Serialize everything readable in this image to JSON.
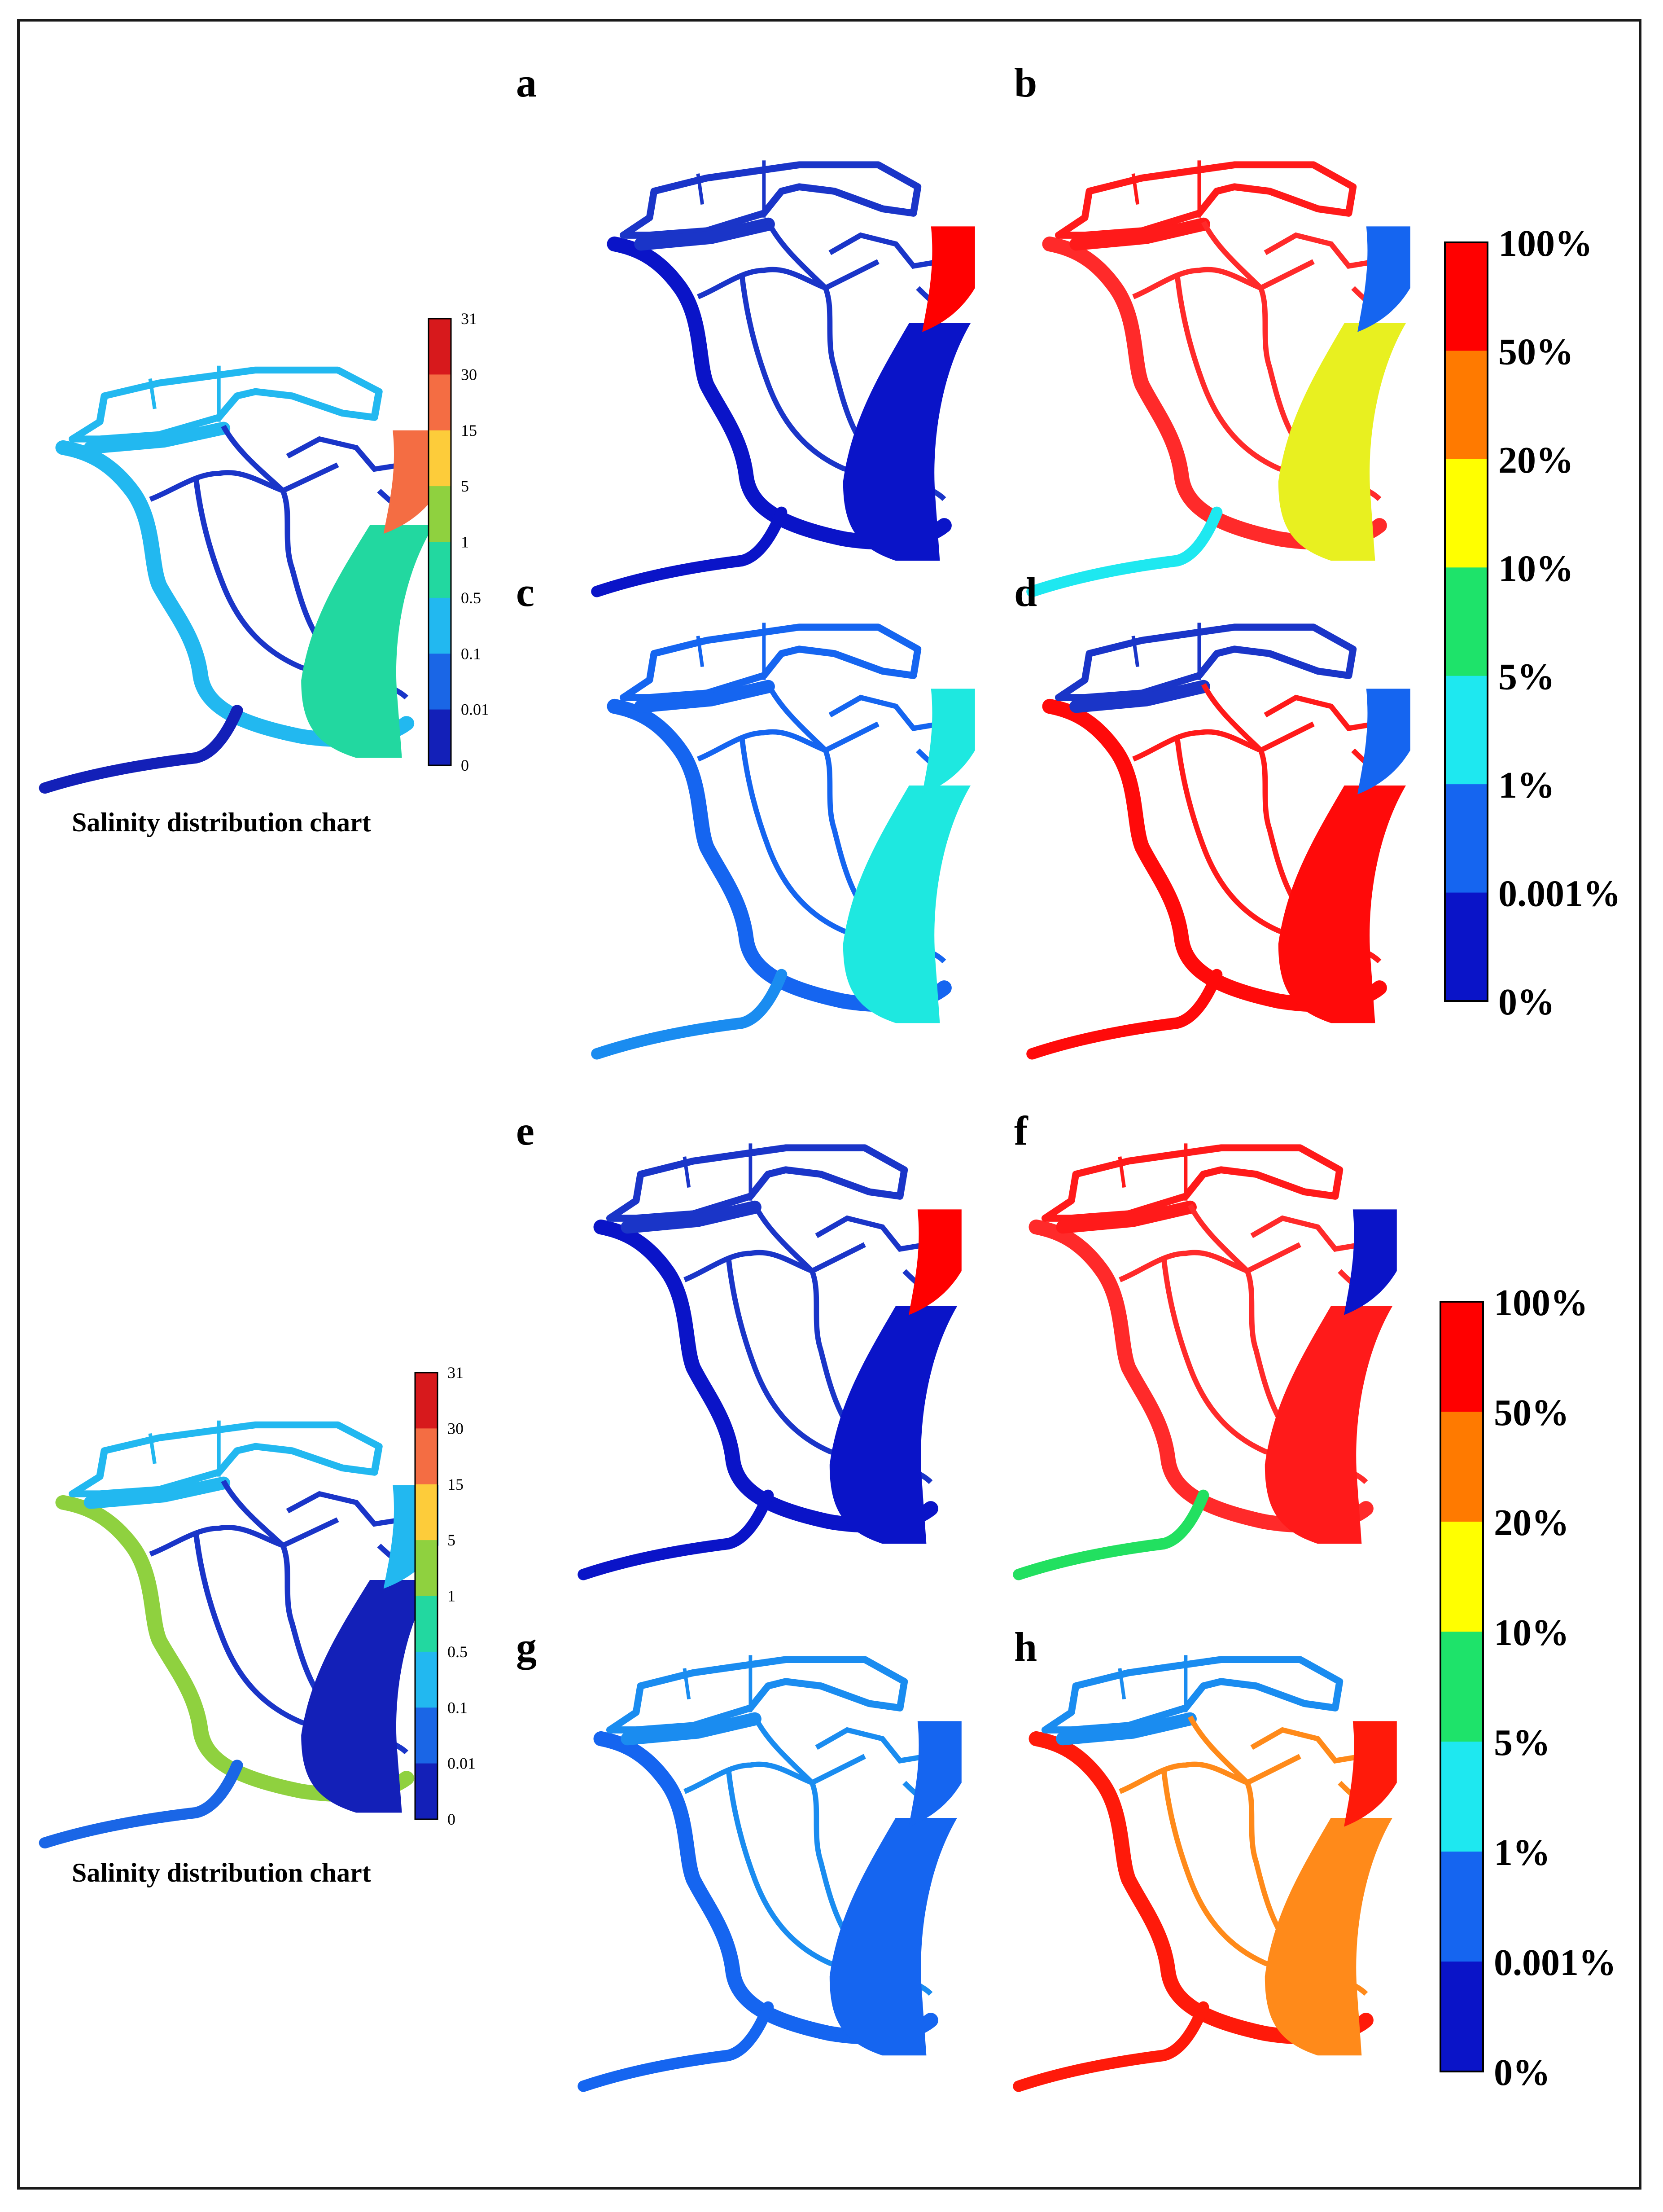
{
  "figure": {
    "caption_top": "Salinity distribution chart",
    "caption_bottom": "Salinity distribution chart"
  },
  "salinity_legend": {
    "labels": [
      "31",
      "30",
      "15",
      "5",
      "1",
      "0.5",
      "0.1",
      "0.01",
      "0"
    ],
    "colors": [
      "#d7191c",
      "#f46d43",
      "#fdcc3a",
      "#8fd13f",
      "#22d8a0",
      "#22b8f0",
      "#1a66e6",
      "#1320b8"
    ]
  },
  "percent_legend": {
    "labels": [
      "100%",
      "50%",
      "20%",
      "10%",
      "5%",
      "1%",
      "0.001%",
      "0%"
    ],
    "colors": [
      "#ff0000",
      "#ff7a00",
      "#ffff00",
      "#1ee36a",
      "#1ee8f0",
      "#1565f0",
      "#0a14c8"
    ]
  },
  "panels": [
    {
      "letter": "a",
      "colors": {
        "north": "#1a35c8",
        "west": "#0a14c8",
        "south": "#0a14c8",
        "east": "#0a14c8",
        "mid": "#1a35c8",
        "patch": "#ff0000"
      }
    },
    {
      "letter": "b",
      "colors": {
        "north": "#ff1a1a",
        "west": "#ff2a2a",
        "south": "#1ee8f0",
        "east": "#e8f020",
        "mid": "#ff2a2a",
        "patch": "#1565f0"
      }
    },
    {
      "letter": "c",
      "colors": {
        "north": "#1565f0",
        "west": "#1565f0",
        "south": "#1a8cf0",
        "east": "#1ee8e0",
        "mid": "#1565f0",
        "patch": "#1ee8e0"
      }
    },
    {
      "letter": "d",
      "colors": {
        "north": "#1a35c8",
        "west": "#ff0a0a",
        "south": "#ff0a0a",
        "east": "#ff0a0a",
        "mid": "#ff1a1a",
        "patch": "#1565f0"
      }
    },
    {
      "letter": "e",
      "colors": {
        "north": "#1a35c8",
        "west": "#0a14c8",
        "south": "#0a14c8",
        "east": "#0a14c8",
        "mid": "#1a35c8",
        "patch": "#ff0000"
      }
    },
    {
      "letter": "f",
      "colors": {
        "north": "#ff1a1a",
        "west": "#ff2a2a",
        "south": "#22e060",
        "east": "#ff1a1a",
        "mid": "#ff2a2a",
        "patch": "#0a14c8"
      }
    },
    {
      "letter": "g",
      "colors": {
        "north": "#1a8cf0",
        "west": "#1565f0",
        "south": "#1565f0",
        "east": "#1565f0",
        "mid": "#1a8cf0",
        "patch": "#1565f0"
      }
    },
    {
      "letter": "h",
      "colors": {
        "north": "#1a8cf0",
        "west": "#ff1a0a",
        "south": "#ff1a0a",
        "east": "#ff8a1a",
        "mid": "#ff8a1a",
        "patch": "#ff1a0a"
      }
    }
  ],
  "salinity_maps": [
    {
      "colors": {
        "north": "#22b8f0",
        "west": "#22b8f0",
        "south": "#1320b8",
        "east": "#22d8a0",
        "mid": "#1a35c8",
        "patch": "#f46d43"
      }
    },
    {
      "colors": {
        "north": "#22b8f0",
        "west": "#8fd13f",
        "south": "#1a66e6",
        "east": "#1320b8",
        "mid": "#1a35c8",
        "patch": "#22b8f0"
      }
    }
  ]
}
